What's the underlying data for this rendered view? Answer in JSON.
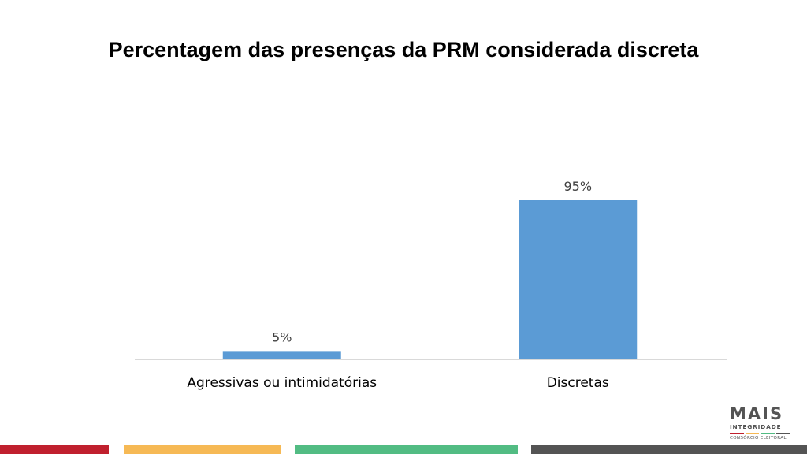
{
  "title": "Percentagem das presenças da PRM considerada discreta",
  "chart_data": {
    "type": "bar",
    "title": "Percentagem das presenças da PRM considerada discreta",
    "categories": [
      "Agressivas ou intimidatórias",
      "Discretas"
    ],
    "values": [
      5,
      95
    ],
    "data_labels": [
      "5%",
      "95%"
    ],
    "unit": "%",
    "ylim": [
      0,
      100
    ],
    "xlabel": "",
    "ylabel": "",
    "grid": false,
    "bar_color": "#5b9bd5"
  },
  "logo": {
    "main": "MAIS",
    "sub": "INTEGRIDADE",
    "tagline": "CONSÓRCIO ELEITORAL",
    "stripe_colors": [
      "#c0202e",
      "#f6b955",
      "#52bc83",
      "#545454"
    ]
  },
  "footer_colors": [
    "#c0202e",
    "#f6b955",
    "#52bc83",
    "#545454"
  ]
}
